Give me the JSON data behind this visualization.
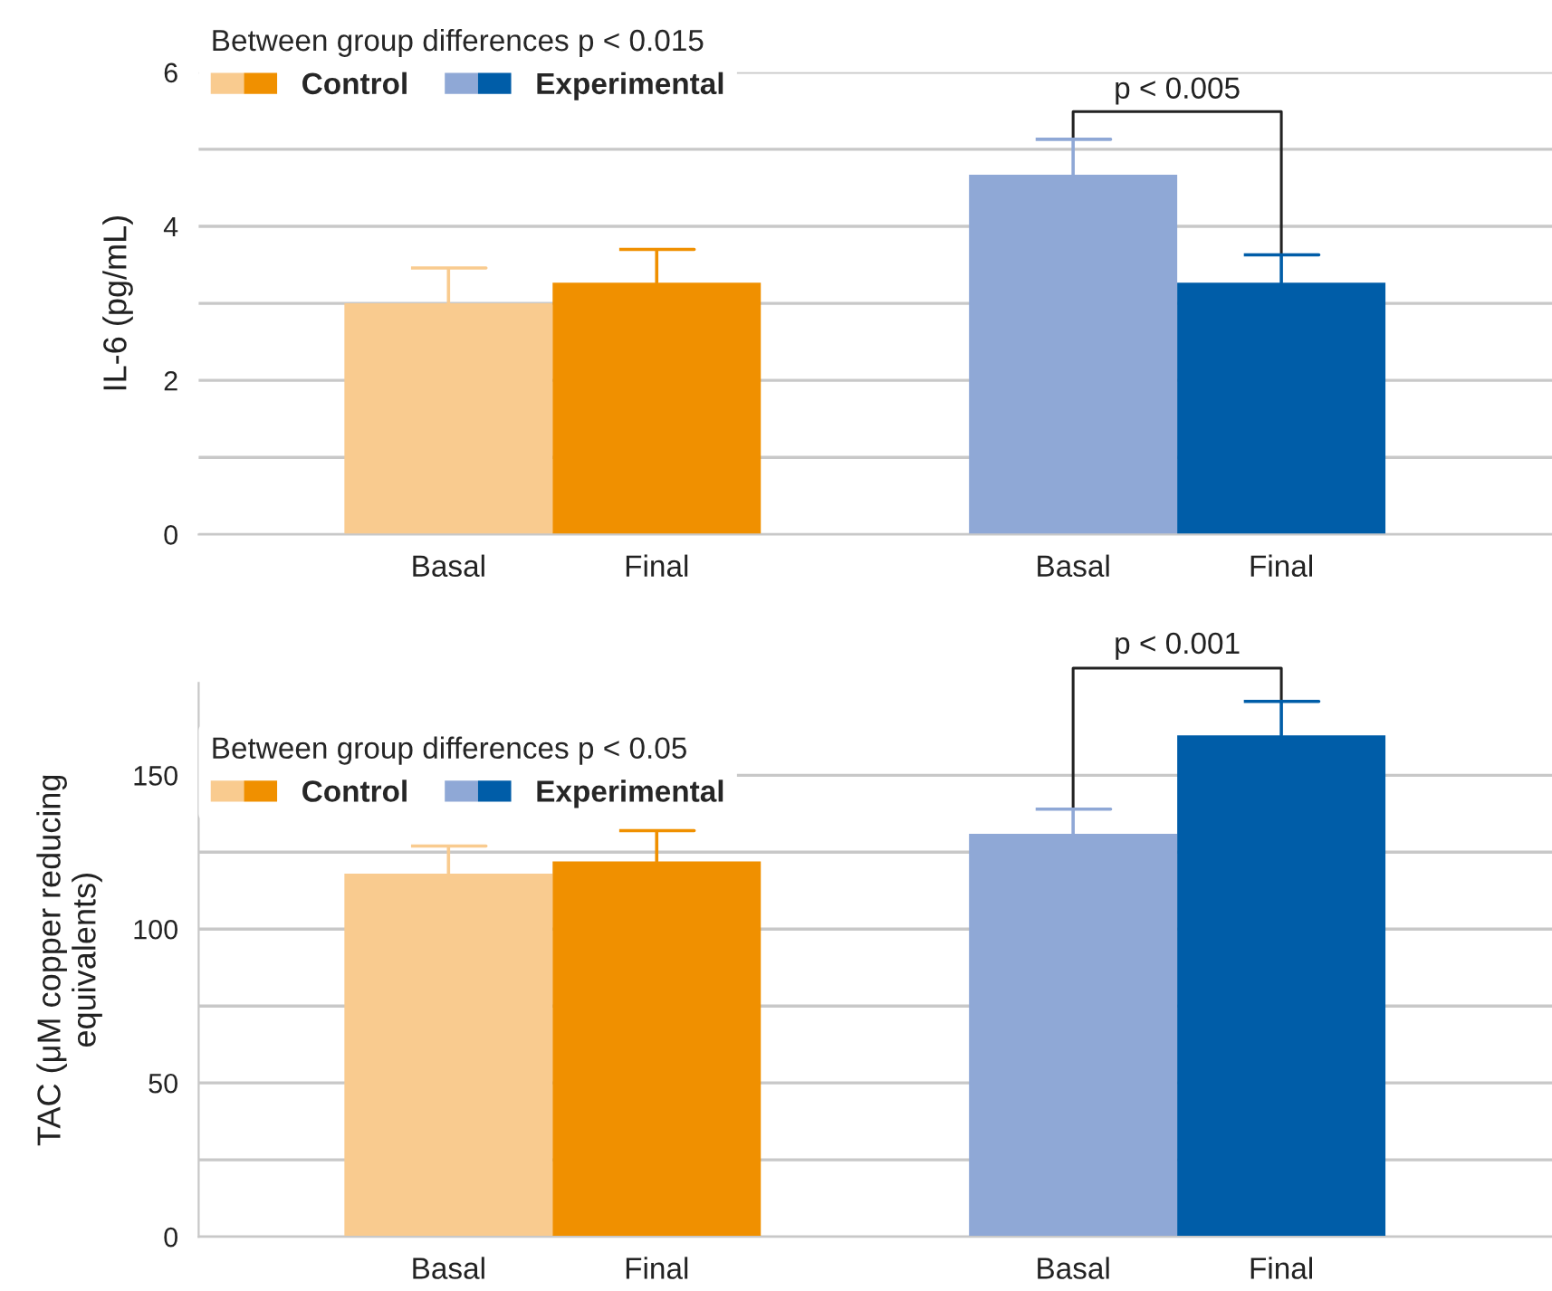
{
  "chart_data": [
    {
      "type": "bar",
      "ylabel": "IL-6 (pg/mL)",
      "legend_title": "Between group differences p < 0.015",
      "legend": "top left",
      "categories": [
        "Basal",
        "Final",
        null,
        "Basal",
        "Final"
      ],
      "series": [
        {
          "name": "Control",
          "colors": [
            "#f9cb8f",
            "#f09000",
            null,
            null,
            null
          ],
          "values": [
            3.0,
            3.27,
            null,
            null,
            null
          ],
          "errors": [
            [
              3.0,
              3.46
            ],
            [
              3.27,
              3.7
            ],
            null,
            null,
            null
          ]
        },
        {
          "name": "Experimental",
          "colors": [
            null,
            null,
            null,
            "#8fa8d6",
            "#005da8"
          ],
          "values": [
            null,
            null,
            null,
            4.67,
            3.27
          ],
          "errors": [
            null,
            null,
            null,
            [
              4.67,
              5.13
            ],
            [
              3.27,
              3.63
            ]
          ]
        }
      ],
      "ylim": [
        0,
        6
      ],
      "yticks": [
        0,
        {
          "value": 1,
          "label": null
        },
        2,
        {
          "value": 3,
          "label": null
        },
        4,
        {
          "value": 5,
          "label": null
        },
        6
      ],
      "grid": "y",
      "annotations": [
        "p < 0.005"
      ]
    },
    {
      "type": "bar",
      "ylabel": "TAC (μM copper reducing\nequivalents)",
      "legend_title": "Between group differences p < 0.05",
      "legend": "top left",
      "categories": [
        "Basal",
        "Final",
        null,
        "Basal",
        "Final"
      ],
      "series": [
        {
          "name": "Control",
          "colors": [
            "#f9cb8f",
            "#f09000",
            null,
            null,
            null
          ],
          "values": [
            118,
            122,
            null,
            null,
            null
          ],
          "errors": [
            [
              118,
              127
            ],
            [
              122,
              132
            ],
            null,
            null,
            null
          ]
        },
        {
          "name": "Experimental",
          "colors": [
            null,
            null,
            null,
            "#8fa8d6",
            "#005da8"
          ],
          "values": [
            null,
            null,
            null,
            131,
            163
          ],
          "errors": [
            null,
            null,
            null,
            [
              131,
              139
            ],
            [
              163,
              174
            ]
          ]
        }
      ],
      "ylim": [
        0,
        180
      ],
      "yticks": [
        0,
        {
          "value": 25,
          "label": null
        },
        50,
        {
          "value": 75,
          "label": null
        },
        100,
        {
          "value": 125,
          "label": null
        },
        150
      ],
      "grid": "y",
      "annotations": [
        "p < 0.001"
      ]
    }
  ]
}
